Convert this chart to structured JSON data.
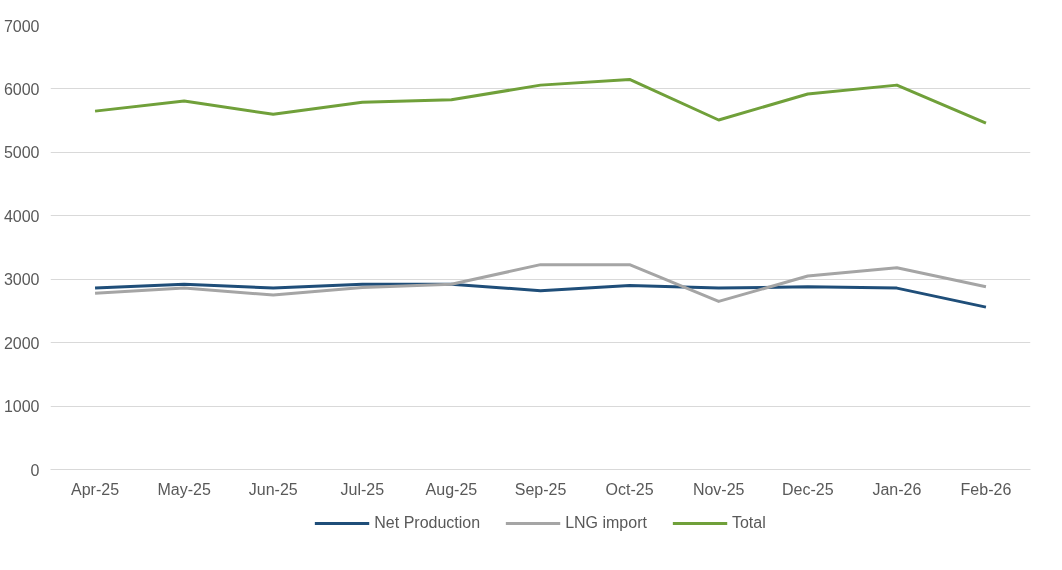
{
  "chart_data": {
    "type": "line",
    "categories": [
      "Apr-25",
      "May-25",
      "Jun-25",
      "Jul-25",
      "Aug-25",
      "Sep-25",
      "Oct-25",
      "Nov-25",
      "Dec-25",
      "Jan-26",
      "Feb-26"
    ],
    "series": [
      {
        "name": "Net Production",
        "color": "#1f4e79",
        "values": [
          2860,
          2920,
          2860,
          2920,
          2920,
          2820,
          2900,
          2860,
          2880,
          2860,
          2560
        ]
      },
      {
        "name": "LNG import",
        "color": "#a5a5a5",
        "values": [
          2780,
          2860,
          2750,
          2870,
          2920,
          3230,
          3230,
          2650,
          3050,
          3180,
          2880
        ]
      },
      {
        "name": "Total",
        "color": "#70a03a",
        "values": [
          5650,
          5810,
          5600,
          5790,
          5830,
          6060,
          6150,
          5510,
          5920,
          6060,
          5460
        ]
      }
    ],
    "ylim": [
      0,
      7000
    ],
    "yticks": [
      0,
      1000,
      2000,
      3000,
      4000,
      5000,
      6000,
      7000
    ],
    "grid": "y",
    "legend": "bottom",
    "line_style": "solid",
    "marker": "none"
  }
}
